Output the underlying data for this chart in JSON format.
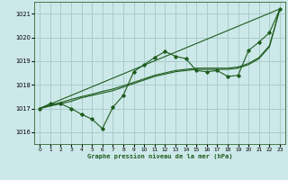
{
  "background_color": "#cce8e8",
  "grid_color": "#aacccc",
  "line_color": "#1e5c1e",
  "title": "Graphe pression niveau de la mer (hPa)",
  "xlim": [
    -0.5,
    23.5
  ],
  "ylim": [
    1015.5,
    1021.5
  ],
  "yticks": [
    1016,
    1017,
    1018,
    1019,
    1020,
    1021
  ],
  "xticks": [
    0,
    1,
    2,
    3,
    4,
    5,
    6,
    7,
    8,
    9,
    10,
    11,
    12,
    13,
    14,
    15,
    16,
    17,
    18,
    19,
    20,
    21,
    22,
    23
  ],
  "main_line_x": [
    0,
    1,
    2,
    3,
    4,
    5,
    6,
    7,
    8,
    9,
    10,
    11,
    12,
    13,
    14,
    15,
    16,
    17,
    18,
    19,
    20,
    21,
    22,
    23
  ],
  "main_line_y": [
    1017.0,
    1017.2,
    1017.2,
    1017.0,
    1016.75,
    1016.55,
    1016.15,
    1017.05,
    1017.55,
    1018.55,
    1018.85,
    1019.15,
    1019.4,
    1019.2,
    1019.1,
    1018.6,
    1018.55,
    1018.6,
    1018.35,
    1018.4,
    1019.45,
    1019.8,
    1020.2,
    1021.2
  ],
  "trend_line_x": [
    0,
    23
  ],
  "trend_line_y": [
    1017.0,
    1021.2
  ],
  "smooth1_x": [
    0,
    1,
    2,
    3,
    4,
    5,
    6,
    7,
    8,
    9,
    10,
    11,
    12,
    13,
    14,
    15,
    16,
    17,
    18,
    19,
    20,
    21,
    22,
    23
  ],
  "smooth1_y": [
    1017.0,
    1017.1,
    1017.2,
    1017.3,
    1017.45,
    1017.55,
    1017.65,
    1017.75,
    1017.9,
    1018.05,
    1018.2,
    1018.35,
    1018.45,
    1018.55,
    1018.6,
    1018.65,
    1018.65,
    1018.65,
    1018.65,
    1018.7,
    1018.85,
    1019.1,
    1019.6,
    1021.2
  ],
  "smooth2_x": [
    0,
    1,
    2,
    3,
    4,
    5,
    6,
    7,
    8,
    9,
    10,
    11,
    12,
    13,
    14,
    15,
    16,
    17,
    18,
    19,
    20,
    21,
    22,
    23
  ],
  "smooth2_y": [
    1017.0,
    1017.12,
    1017.25,
    1017.38,
    1017.5,
    1017.6,
    1017.72,
    1017.82,
    1017.96,
    1018.1,
    1018.25,
    1018.4,
    1018.5,
    1018.6,
    1018.65,
    1018.7,
    1018.7,
    1018.7,
    1018.7,
    1018.75,
    1018.9,
    1019.15,
    1019.65,
    1021.2
  ]
}
